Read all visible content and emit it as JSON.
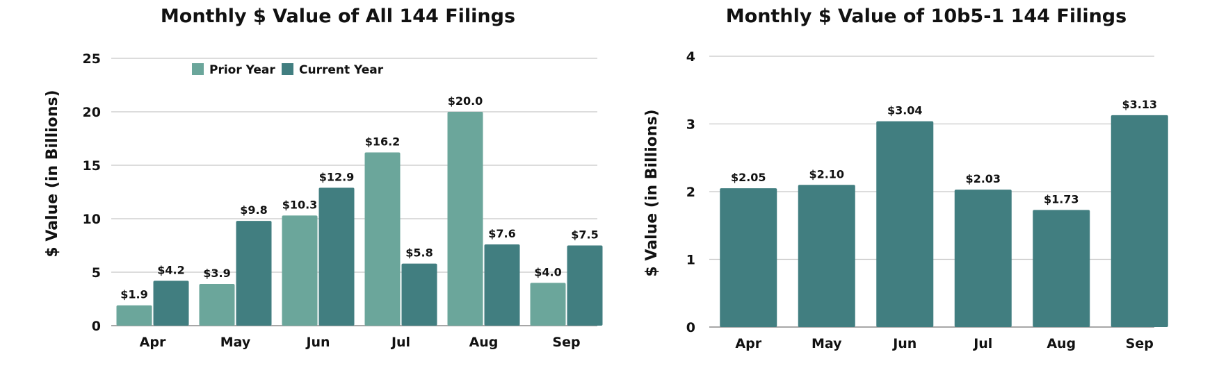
{
  "chart_data": [
    {
      "type": "bar",
      "title": "Monthly $ Value of All 144 Filings",
      "ylabel": "$ Value (in Billions)",
      "xlabel": "",
      "categories": [
        "Apr",
        "May",
        "Jun",
        "Jul",
        "Aug",
        "Sep"
      ],
      "ylim": [
        0,
        25
      ],
      "yticks": [
        0,
        5,
        10,
        15,
        20,
        25
      ],
      "grid": true,
      "legend_position": "top",
      "series": [
        {
          "name": "Prior Year",
          "color": "#6ba69b",
          "values": [
            1.9,
            3.9,
            10.3,
            16.2,
            20.0,
            4.0
          ],
          "labels": [
            "$1.9",
            "$3.9",
            "$10.3",
            "$16.2",
            "$20.0",
            "$4.0"
          ]
        },
        {
          "name": "Current Year",
          "color": "#417e80",
          "values": [
            4.2,
            9.8,
            12.9,
            5.8,
            7.6,
            7.5
          ],
          "labels": [
            "$4.2",
            "$9.8",
            "$12.9",
            "$5.8",
            "$7.6",
            "$7.5"
          ]
        }
      ]
    },
    {
      "type": "bar",
      "title": "Monthly $ Value of 10b5-1 144 Filings",
      "ylabel": "$ Value (in Billions)",
      "xlabel": "",
      "categories": [
        "Apr",
        "May",
        "Jun",
        "Jul",
        "Aug",
        "Sep"
      ],
      "ylim": [
        0,
        4
      ],
      "yticks": [
        0,
        1,
        2,
        3,
        4
      ],
      "grid": true,
      "series": [
        {
          "color": "#417e80",
          "values": [
            2.05,
            2.1,
            3.04,
            2.03,
            1.73,
            3.13
          ],
          "labels": [
            "$2.05",
            "$2.10",
            "$3.04",
            "$2.03",
            "$1.73",
            "$3.13"
          ]
        }
      ]
    }
  ]
}
